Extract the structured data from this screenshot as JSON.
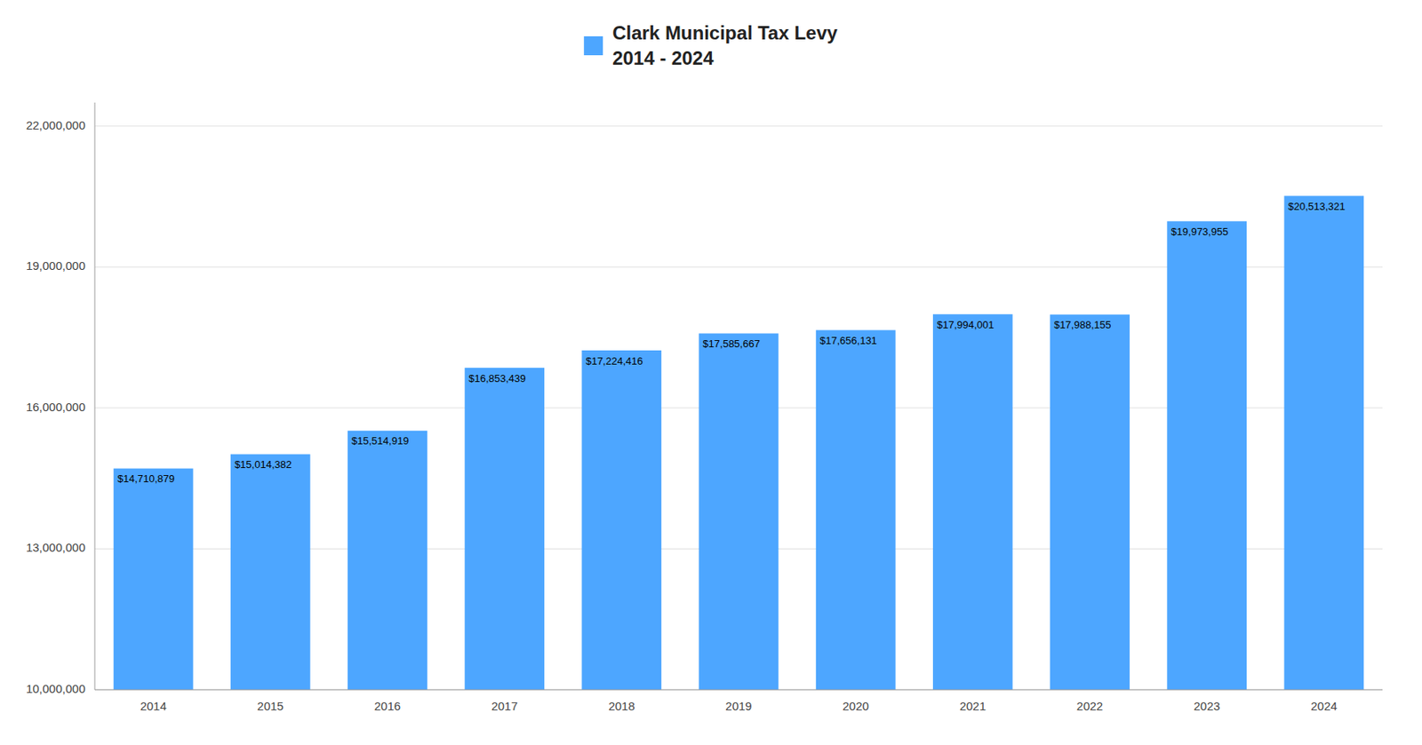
{
  "chart_data": {
    "type": "bar",
    "title": "Clark Municipal Tax Levy",
    "subtitle": "2014 - 2024",
    "categories": [
      "2014",
      "2015",
      "2016",
      "2017",
      "2018",
      "2019",
      "2020",
      "2021",
      "2022",
      "2023",
      "2024"
    ],
    "values": [
      14710879,
      15014382,
      15514919,
      16853439,
      17224416,
      17585667,
      17656131,
      17994001,
      17988155,
      19973955,
      20513321
    ],
    "value_labels": [
      "$14,710,879",
      "$15,014,382",
      "$15,514,919",
      "$16,853,439",
      "$17,224,416",
      "$17,585,667",
      "$17,656,131",
      "$17,994,001",
      "$17,988,155",
      "$19,973,955",
      "$20,513,321"
    ],
    "data_labels": true,
    "color": "#4DA6FF",
    "ylim": [
      10000000,
      22500000
    ],
    "yticks": [
      {
        "value": 10000000,
        "label": "10,000,000"
      },
      {
        "value": 13000000,
        "label": "13,000,000"
      },
      {
        "value": 16000000,
        "label": "16,000,000"
      },
      {
        "value": 19000000,
        "label": "19,000,000"
      },
      {
        "value": 22000000,
        "label": "22,000,000"
      }
    ],
    "grid": true
  }
}
